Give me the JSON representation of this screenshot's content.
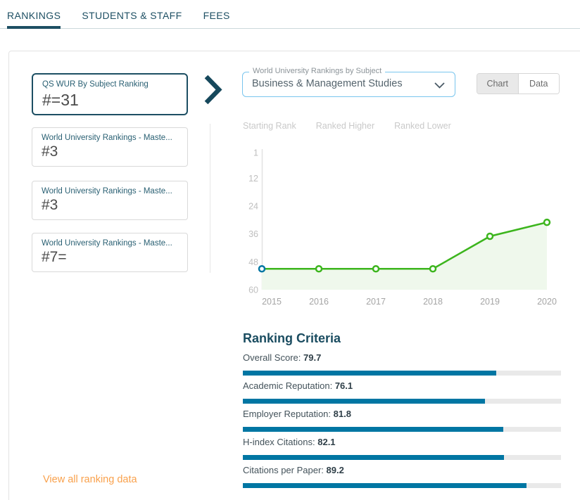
{
  "tabs": {
    "items": [
      {
        "label": "RANKINGS",
        "active": true
      },
      {
        "label": "STUDENTS & STAFF",
        "active": false
      },
      {
        "label": "FEES",
        "active": false
      }
    ]
  },
  "rankings_panel": {
    "cards": [
      {
        "title": "QS WUR By Subject Ranking",
        "rank": "#=31",
        "selected": true
      },
      {
        "title": "World University Rankings - Maste...",
        "rank": "#3",
        "selected": false
      },
      {
        "title": "World University Rankings - Maste...",
        "rank": "#3",
        "selected": false
      },
      {
        "title": "World University Rankings - Maste...",
        "rank": "#7=",
        "selected": false
      }
    ],
    "subject_select": {
      "label": "World University Rankings by Subject",
      "value": "Business & Management Studies"
    },
    "view_toggle": {
      "options": [
        "Chart",
        "Data"
      ],
      "active": "Chart"
    },
    "view_all_link": "View all ranking data"
  },
  "chart_data": {
    "type": "line",
    "x": [
      2015,
      2016,
      2017,
      2018,
      2019,
      2020
    ],
    "values": [
      51,
      51,
      51,
      51,
      37,
      31
    ],
    "y_ticks": [
      1,
      12,
      24,
      36,
      48,
      60
    ],
    "ylim": [
      1,
      60
    ],
    "y_axis_inverted": true,
    "grid": false,
    "legend": [
      "Starting Rank",
      "Ranked Higher",
      "Ranked Lower"
    ],
    "legend_position": "top",
    "line_color": "#3cb51d",
    "fill_color": "#eff8ec",
    "marker_fill": "#ffffff",
    "start_marker_color": "#0076a3",
    "axis_color": "#e2e2e2",
    "y_tick_color": "#bfbfbf",
    "x_tick_color": "#a5a5a5"
  },
  "ranking_criteria": {
    "title": "Ranking Criteria",
    "bar_color": "#0076a3",
    "track_color": "#e9e9e9",
    "items": [
      {
        "label": "Overall Score:",
        "value": 79.7
      },
      {
        "label": "Academic Reputation:",
        "value": 76.1
      },
      {
        "label": "Employer Reputation:",
        "value": 81.8
      },
      {
        "label": "H-index Citations:",
        "value": 82.1
      },
      {
        "label": "Citations per Paper:",
        "value": 89.2
      }
    ]
  },
  "colors": {
    "accent_teal": "#1d4f63",
    "bar_teal": "#0076a3",
    "line_green": "#3cb51d",
    "link_orange": "#f9a14c",
    "select_border_blue": "#79c5ee"
  }
}
